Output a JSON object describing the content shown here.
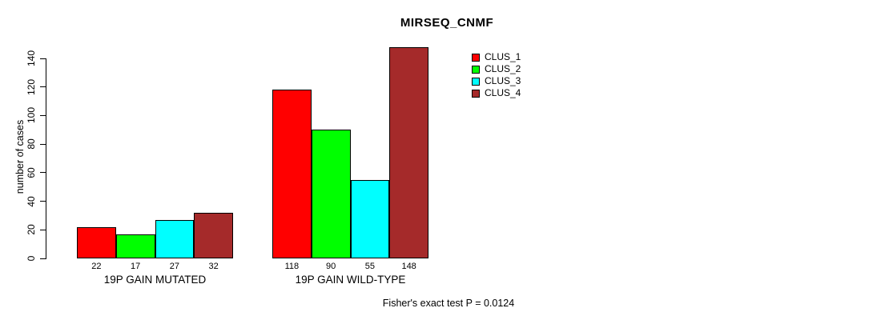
{
  "chart_data": {
    "type": "bar",
    "title": "MIRSEQ_CNMF",
    "ylabel": "number of cases",
    "xlabel": "",
    "ylim": [
      0,
      140
    ],
    "yticks": [
      0,
      20,
      40,
      60,
      80,
      100,
      120,
      140
    ],
    "grid": false,
    "legend_position": "right",
    "groups": [
      {
        "label": "19P GAIN MUTATED",
        "values": [
          22,
          17,
          27,
          32
        ]
      },
      {
        "label": "19P GAIN WILD-TYPE",
        "values": [
          118,
          90,
          55,
          148
        ]
      }
    ],
    "series": [
      {
        "name": "CLUS_1",
        "color": "#ff0000"
      },
      {
        "name": "CLUS_2",
        "color": "#00ff00"
      },
      {
        "name": "CLUS_3",
        "color": "#00ffff"
      },
      {
        "name": "CLUS_4",
        "color": "#a52a2a"
      }
    ],
    "bar_value_labels": [
      [
        "22",
        "17",
        "27",
        "32"
      ],
      [
        "118",
        "90",
        "55",
        "148"
      ]
    ],
    "annotation": "Fisher's exact test P = 0.0124"
  }
}
